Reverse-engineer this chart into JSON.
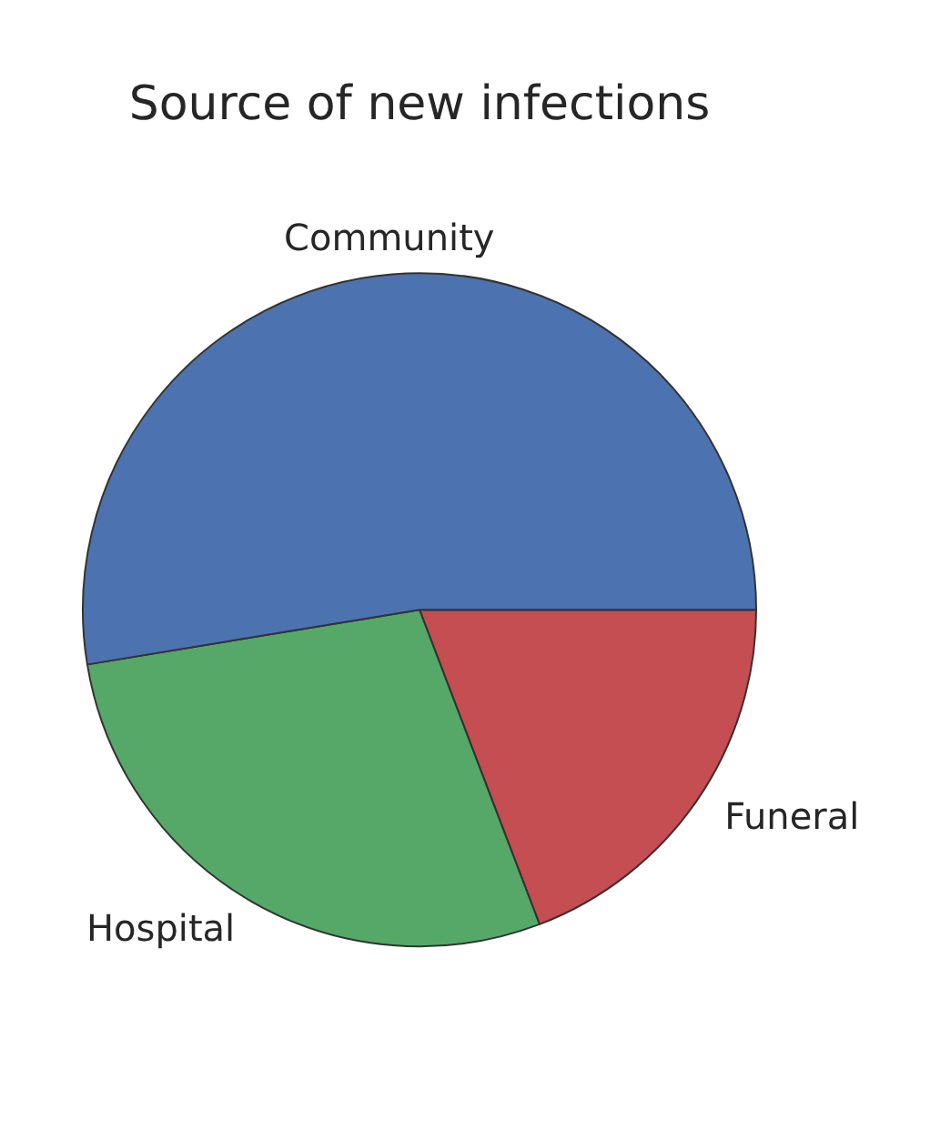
{
  "chart_data": {
    "type": "pie",
    "title": "Source of new infections",
    "categories": [
      "Community",
      "Hospital",
      "Funeral"
    ],
    "values": [
      52.6,
      28.2,
      19.2
    ],
    "colors": [
      "#4c72b0",
      "#55a868",
      "#c44e52"
    ],
    "legend": false
  }
}
